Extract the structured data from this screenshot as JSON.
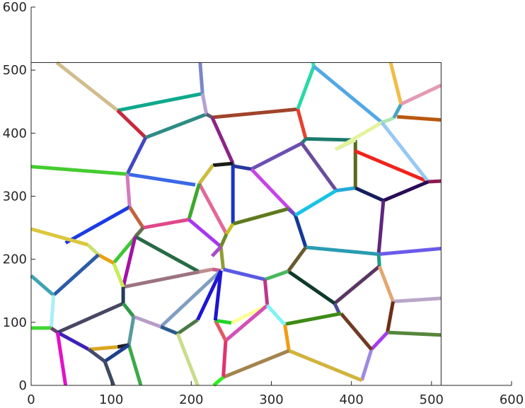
{
  "chart_data": {
    "type": "line",
    "title": "",
    "xlabel": "",
    "ylabel": "",
    "xlim": [
      0,
      600
    ],
    "ylim": [
      0,
      600
    ],
    "x_ticks": [
      0,
      100,
      200,
      300,
      400,
      500,
      600
    ],
    "y_ticks": [
      0,
      100,
      200,
      300,
      400,
      500,
      600
    ],
    "data_extent": {
      "xlim": [
        0,
        512
      ],
      "ylim": [
        0,
        512
      ]
    },
    "grid": false,
    "legend": "none",
    "segments": [
      {
        "from": [
          32,
          512
        ],
        "to": [
          108,
          436
        ],
        "color": "#D3BC8D"
      },
      {
        "from": [
          108,
          436
        ],
        "to": [
          215,
          463
        ],
        "color": "#0FA98D"
      },
      {
        "from": [
          108,
          436
        ],
        "to": [
          143,
          393
        ],
        "color": "#C8293E"
      },
      {
        "from": [
          143,
          393
        ],
        "to": [
          219,
          430
        ],
        "color": "#2E8B85"
      },
      {
        "from": [
          211,
          512
        ],
        "to": [
          214,
          463
        ],
        "color": "#7B86C9"
      },
      {
        "from": [
          214,
          463
        ],
        "to": [
          219,
          430
        ],
        "color": "#B5A0D6"
      },
      {
        "from": [
          143,
          393
        ],
        "to": [
          120,
          335
        ],
        "color": "#4348C3"
      },
      {
        "from": [
          0,
          347
        ],
        "to": [
          120,
          335
        ],
        "color": "#44CC30"
      },
      {
        "from": [
          120,
          335
        ],
        "to": [
          205,
          318
        ],
        "color": "#3B68E5"
      },
      {
        "from": [
          120,
          335
        ],
        "to": [
          123,
          283
        ],
        "color": "#D479C3"
      },
      {
        "from": [
          123,
          283
        ],
        "to": [
          43,
          226
        ],
        "color": "#1A3BE6"
      },
      {
        "from": [
          123,
          283
        ],
        "to": [
          140,
          250
        ],
        "color": "#C2633E"
      },
      {
        "from": [
          219,
          430
        ],
        "to": [
          226,
          425
        ],
        "color": "#5B5B75"
      },
      {
        "from": [
          226,
          425
        ],
        "to": [
          333,
          438
        ],
        "color": "#A0432B"
      },
      {
        "from": [
          226,
          425
        ],
        "to": [
          252,
          352
        ],
        "color": "#8B2585"
      },
      {
        "from": [
          252,
          352
        ],
        "to": [
          252,
          256
        ],
        "color": "#1935C8"
      },
      {
        "from": [
          252,
          352
        ],
        "to": [
          227,
          349
        ],
        "color": "#1B1B1B"
      },
      {
        "from": [
          227,
          349
        ],
        "to": [
          210,
          320
        ],
        "color": "#CDBB3C"
      },
      {
        "from": [
          210,
          320
        ],
        "to": [
          244,
          240
        ],
        "color": "#E3689A"
      },
      {
        "from": [
          210,
          320
        ],
        "to": [
          197,
          263
        ],
        "color": "#3CA82B"
      },
      {
        "from": [
          197,
          263
        ],
        "to": [
          140,
          250
        ],
        "color": "#E0488A"
      },
      {
        "from": [
          197,
          263
        ],
        "to": [
          237,
          220
        ],
        "color": "#A538F0"
      },
      {
        "from": [
          140,
          250
        ],
        "to": [
          103,
          194
        ],
        "color": "#3CC834"
      },
      {
        "from": [
          140,
          250
        ],
        "to": [
          130,
          236
        ],
        "color": "#6B6B55"
      },
      {
        "from": [
          130,
          236
        ],
        "to": [
          210,
          180
        ],
        "color": "#276B45"
      },
      {
        "from": [
          130,
          236
        ],
        "to": [
          115,
          156
        ],
        "color": "#A411A6"
      },
      {
        "from": [
          352,
          512
        ],
        "to": [
          353,
          506
        ],
        "color": "#34E3B2"
      },
      {
        "from": [
          353,
          506
        ],
        "to": [
          333,
          438
        ],
        "color": "#27D9A6"
      },
      {
        "from": [
          353,
          506
        ],
        "to": [
          438,
          417
        ],
        "color": "#52A8E6"
      },
      {
        "from": [
          333,
          438
        ],
        "to": [
          343,
          391
        ],
        "color": "#E8402F"
      },
      {
        "from": [
          343,
          391
        ],
        "to": [
          338,
          384
        ],
        "color": "#2A7A77"
      },
      {
        "from": [
          343,
          391
        ],
        "to": [
          405,
          389
        ],
        "color": "#1A7A6A"
      },
      {
        "from": [
          338,
          384
        ],
        "to": [
          275,
          343
        ],
        "color": "#6B4FB3"
      },
      {
        "from": [
          338,
          384
        ],
        "to": [
          381,
          309
        ],
        "color": "#6A4C9C"
      },
      {
        "from": [
          275,
          343
        ],
        "to": [
          252,
          348
        ],
        "color": "#273A9C"
      },
      {
        "from": [
          275,
          343
        ],
        "to": [
          330,
          270
        ],
        "color": "#C644E6"
      },
      {
        "from": [
          252,
          256
        ],
        "to": [
          321,
          280
        ],
        "color": "#5E7A1D"
      },
      {
        "from": [
          252,
          256
        ],
        "to": [
          244,
          240
        ],
        "color": "#C6C020"
      },
      {
        "from": [
          244,
          240
        ],
        "to": [
          237,
          220
        ],
        "color": "#6A8B2A"
      },
      {
        "from": [
          237,
          220
        ],
        "to": [
          240,
          184
        ],
        "color": "#8F9E34"
      },
      {
        "from": [
          237,
          220
        ],
        "to": [
          226,
          205
        ],
        "color": "#A84ACB"
      },
      {
        "from": [
          321,
          280
        ],
        "to": [
          330,
          270
        ],
        "color": "#6C48C5"
      },
      {
        "from": [
          330,
          270
        ],
        "to": [
          343,
          219
        ],
        "color": "#143A96"
      },
      {
        "from": [
          330,
          270
        ],
        "to": [
          381,
          309
        ],
        "color": "#15C3E6"
      },
      {
        "from": [
          381,
          309
        ],
        "to": [
          405,
          313
        ],
        "color": "#22A9D8"
      },
      {
        "from": [
          405,
          389
        ],
        "to": [
          405,
          313
        ],
        "color": "#5C6A1E"
      },
      {
        "from": [
          405,
          389
        ],
        "to": [
          380,
          374
        ],
        "color": "#D6F2A6"
      },
      {
        "from": [
          405,
          313
        ],
        "to": [
          440,
          293
        ],
        "color": "#161F5C"
      },
      {
        "from": [
          404,
          372
        ],
        "to": [
          496,
          323
        ],
        "color": "#F1221C"
      },
      {
        "from": [
          438,
          417
        ],
        "to": [
          380,
          374
        ],
        "color": "#E3F39C"
      },
      {
        "from": [
          438,
          417
        ],
        "to": [
          453,
          424
        ],
        "color": "#AEE6B0"
      },
      {
        "from": [
          438,
          417
        ],
        "to": [
          496,
          323
        ],
        "color": "#97C8F5"
      },
      {
        "from": [
          453,
          424
        ],
        "to": [
          462,
          446
        ],
        "color": "#43A6C5"
      },
      {
        "from": [
          462,
          446
        ],
        "to": [
          449,
          512
        ],
        "color": "#F3BB46"
      },
      {
        "from": [
          462,
          446
        ],
        "to": [
          512,
          476
        ],
        "color": "#E49AB4"
      },
      {
        "from": [
          457,
          426
        ],
        "to": [
          512,
          421
        ],
        "color": "#B95811"
      },
      {
        "from": [
          496,
          323
        ],
        "to": [
          512,
          324
        ],
        "color": "#8F1B53"
      },
      {
        "from": [
          496,
          323
        ],
        "to": [
          440,
          293
        ],
        "color": "#2A0C56"
      },
      {
        "from": [
          440,
          293
        ],
        "to": [
          434,
          208
        ],
        "color": "#5F2680"
      },
      {
        "from": [
          434,
          208
        ],
        "to": [
          512,
          217
        ],
        "color": "#6A5BEA"
      },
      {
        "from": [
          434,
          208
        ],
        "to": [
          343,
          219
        ],
        "color": "#2A9CB2"
      },
      {
        "from": [
          434,
          208
        ],
        "to": [
          435,
          189
        ],
        "color": "#1E9A87"
      },
      {
        "from": [
          435,
          189
        ],
        "to": [
          379,
          130
        ],
        "color": "#5C3563"
      },
      {
        "from": [
          435,
          189
        ],
        "to": [
          452,
          133
        ],
        "color": "#E3A770"
      },
      {
        "from": [
          452,
          133
        ],
        "to": [
          512,
          138
        ],
        "color": "#B9A6C8"
      },
      {
        "from": [
          452,
          133
        ],
        "to": [
          445,
          84
        ],
        "color": "#6C2E15"
      },
      {
        "from": [
          445,
          84
        ],
        "to": [
          512,
          80
        ],
        "color": "#56863A"
      },
      {
        "from": [
          445,
          84
        ],
        "to": [
          425,
          57
        ],
        "color": "#A63BF0"
      },
      {
        "from": [
          425,
          57
        ],
        "to": [
          413,
          8
        ],
        "color": "#9E89E4"
      },
      {
        "from": [
          425,
          57
        ],
        "to": [
          387,
          114
        ],
        "color": "#6F3B23"
      },
      {
        "from": [
          379,
          130
        ],
        "to": [
          385,
          114
        ],
        "color": "#4C4C9C"
      },
      {
        "from": [
          387,
          114
        ],
        "to": [
          317,
          97
        ],
        "color": "#3E8B15"
      },
      {
        "from": [
          379,
          130
        ],
        "to": [
          321,
          181
        ],
        "color": "#0F3A2A"
      },
      {
        "from": [
          343,
          219
        ],
        "to": [
          321,
          181
        ],
        "color": "#6A5A2F"
      },
      {
        "from": [
          321,
          181
        ],
        "to": [
          292,
          168
        ],
        "color": "#4AB85E"
      },
      {
        "from": [
          292,
          168
        ],
        "to": [
          240,
          184
        ],
        "color": "#5A5AE3"
      },
      {
        "from": [
          292,
          168
        ],
        "to": [
          295,
          127
        ],
        "color": "#B9378B"
      },
      {
        "from": [
          295,
          127
        ],
        "to": [
          250,
          99
        ],
        "color": "#FFFF98"
      },
      {
        "from": [
          295,
          127
        ],
        "to": [
          243,
          71
        ],
        "color": "#D44FB7"
      },
      {
        "from": [
          295,
          127
        ],
        "to": [
          317,
          96
        ],
        "color": "#7FF3F4"
      },
      {
        "from": [
          317,
          96
        ],
        "to": [
          322,
          55
        ],
        "color": "#F39B13"
      },
      {
        "from": [
          322,
          55
        ],
        "to": [
          413,
          8
        ],
        "color": "#D1B33D"
      },
      {
        "from": [
          322,
          55
        ],
        "to": [
          240,
          13
        ],
        "color": "#A3844E"
      },
      {
        "from": [
          240,
          13
        ],
        "to": [
          243,
          71
        ],
        "color": "#E1336C"
      },
      {
        "from": [
          240,
          13
        ],
        "to": [
          228,
          0
        ],
        "color": "#2AF11E"
      },
      {
        "from": [
          243,
          71
        ],
        "to": [
          230,
          103
        ],
        "color": "#E25A60"
      },
      {
        "from": [
          230,
          103
        ],
        "to": [
          250,
          99
        ],
        "color": "#21D628"
      },
      {
        "from": [
          230,
          103
        ],
        "to": [
          237,
          182
        ],
        "color": "#1E14D4"
      },
      {
        "from": [
          237,
          182
        ],
        "to": [
          226,
          184
        ],
        "color": "#C95A88"
      },
      {
        "from": [
          210,
          180
        ],
        "to": [
          226,
          184
        ],
        "color": "#BF8E8E"
      },
      {
        "from": [
          237,
          182
        ],
        "to": [
          162,
          93
        ],
        "color": "#7F9EC1"
      },
      {
        "from": [
          210,
          180
        ],
        "to": [
          115,
          156
        ],
        "color": "#9B7480"
      },
      {
        "from": [
          115,
          156
        ],
        "to": [
          103,
          194
        ],
        "color": "#C5ED55"
      },
      {
        "from": [
          103,
          194
        ],
        "to": [
          84,
          207
        ],
        "color": "#E8A113"
      },
      {
        "from": [
          84,
          207
        ],
        "to": [
          71,
          223
        ],
        "color": "#C9E16F"
      },
      {
        "from": [
          71,
          223
        ],
        "to": [
          0,
          248
        ],
        "color": "#DCC63C"
      },
      {
        "from": [
          84,
          207
        ],
        "to": [
          28,
          143
        ],
        "color": "#2C5BAA"
      },
      {
        "from": [
          28,
          143
        ],
        "to": [
          0,
          174
        ],
        "color": "#3DA4B4"
      },
      {
        "from": [
          28,
          143
        ],
        "to": [
          25,
          91
        ],
        "color": "#A9EFF5"
      },
      {
        "from": [
          25,
          91
        ],
        "to": [
          0,
          91
        ],
        "color": "#3DD633"
      },
      {
        "from": [
          25,
          91
        ],
        "to": [
          33,
          84
        ],
        "color": "#6B3F6B"
      },
      {
        "from": [
          33,
          84
        ],
        "to": [
          115,
          130
        ],
        "color": "#474763"
      },
      {
        "from": [
          33,
          84
        ],
        "to": [
          72,
          57
        ],
        "color": "#3E1FB9"
      },
      {
        "from": [
          33,
          84
        ],
        "to": [
          43,
          0
        ],
        "color": "#E410C8"
      },
      {
        "from": [
          115,
          156
        ],
        "to": [
          115,
          130
        ],
        "color": "#243B5C"
      },
      {
        "from": [
          115,
          130
        ],
        "to": [
          128,
          109
        ],
        "color": "#2F9A49"
      },
      {
        "from": [
          128,
          109
        ],
        "to": [
          162,
          93
        ],
        "color": "#B99CC9"
      },
      {
        "from": [
          128,
          109
        ],
        "to": [
          122,
          64
        ],
        "color": "#5A9A9E"
      },
      {
        "from": [
          122,
          64
        ],
        "to": [
          108,
          61
        ],
        "color": "#1C1C24"
      },
      {
        "from": [
          108,
          61
        ],
        "to": [
          72,
          57
        ],
        "color": "#D9A621"
      },
      {
        "from": [
          122,
          64
        ],
        "to": [
          137,
          0
        ],
        "color": "#3CAA48"
      },
      {
        "from": [
          122,
          64
        ],
        "to": [
          92,
          38
        ],
        "color": "#1B3F8F"
      },
      {
        "from": [
          72,
          57
        ],
        "to": [
          92,
          38
        ],
        "color": "#454A6D"
      },
      {
        "from": [
          92,
          38
        ],
        "to": [
          103,
          0
        ],
        "color": "#3D4A60"
      },
      {
        "from": [
          162,
          93
        ],
        "to": [
          183,
          82
        ],
        "color": "#2A5A8E"
      },
      {
        "from": [
          183,
          82
        ],
        "to": [
          208,
          104
        ],
        "color": "#4A7A45"
      },
      {
        "from": [
          208,
          104
        ],
        "to": [
          237,
          182
        ],
        "color": "#1E14D4"
      },
      {
        "from": [
          183,
          82
        ],
        "to": [
          208,
          0
        ],
        "color": "#C9DD8A"
      }
    ]
  }
}
